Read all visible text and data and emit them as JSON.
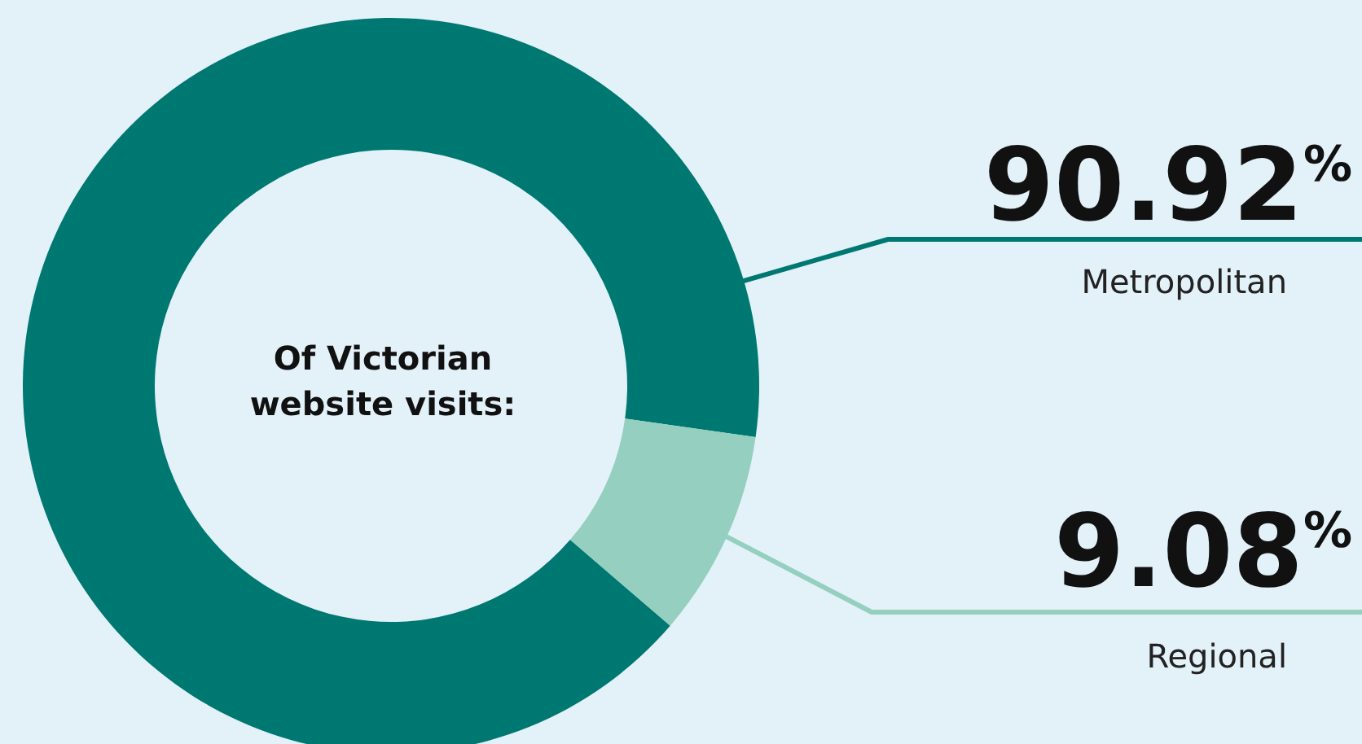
{
  "chart_data": {
    "type": "donut",
    "title": "Of Victorian website visits:",
    "categories": [
      "Metropolitan",
      "Regional"
    ],
    "values": [
      90.92,
      9.08
    ],
    "colors": [
      "#007872",
      "#94cfbf"
    ],
    "value_labels": [
      "90.92$^{%}$",
      "9.08$^{%}$"
    ]
  }
}
